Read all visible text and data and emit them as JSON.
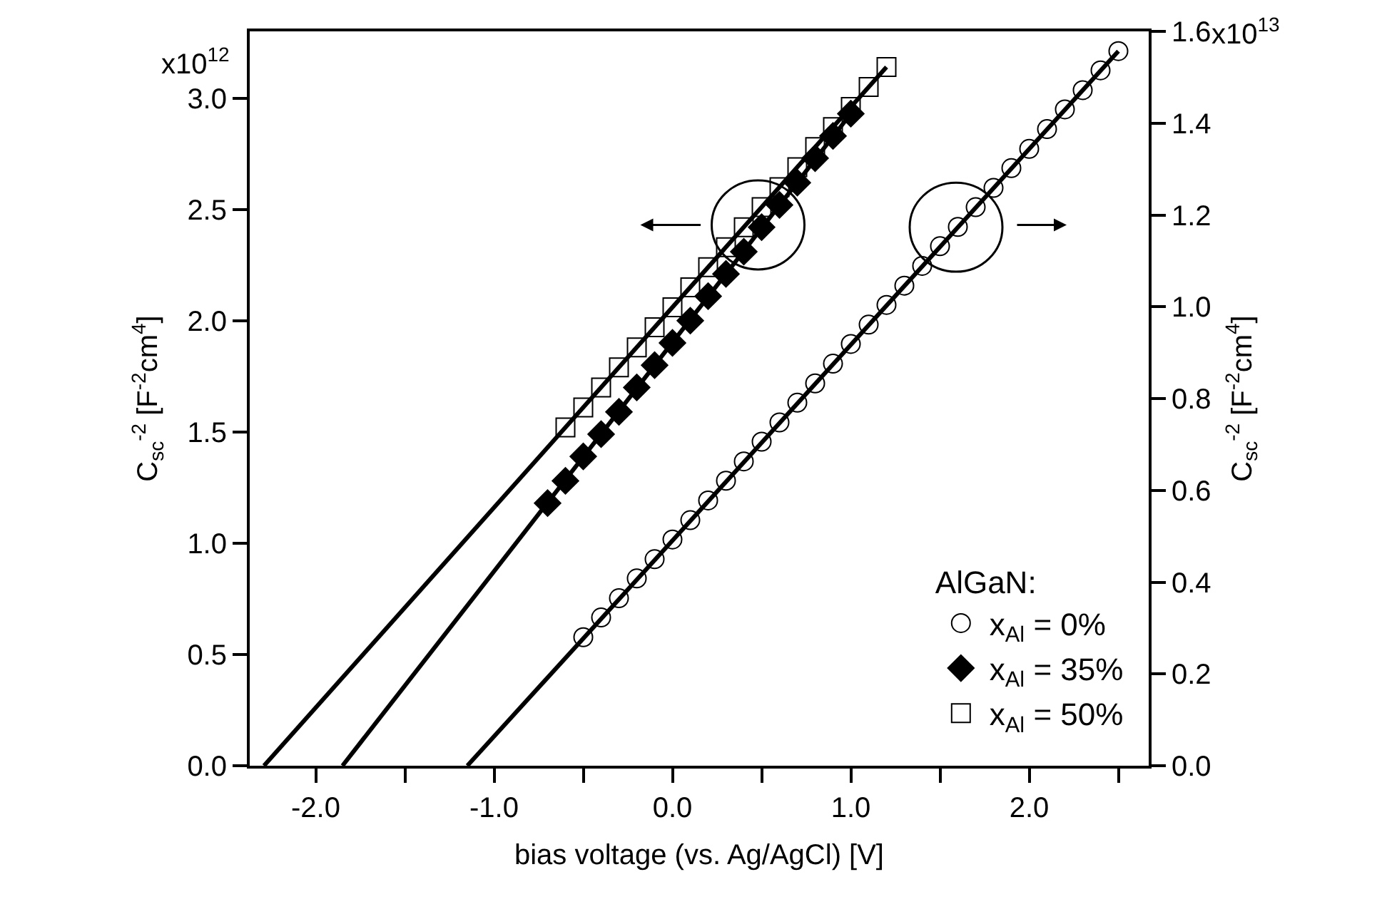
{
  "chart_data": {
    "type": "scatter",
    "xlabel": "bias voltage (vs. Ag/AgCl) [V]",
    "ylabel": "C$_{sc}$$^{-2}$ [F$^{-2}$cm$^{4}$]",
    "y2label": "C$_{sc}$$^{-2}$ [F$^{-2}$cm$^{4}$]",
    "legend_title": "AlGaN:",
    "legend": "bottom right",
    "xlim": [
      -2.37,
      2.67
    ],
    "xticks": [
      {
        "value": -2.0,
        "label": "-2.0"
      },
      {
        "value": -1.5,
        "label": null
      },
      {
        "value": -1.0,
        "label": "-1.0"
      },
      {
        "value": -0.5,
        "label": null
      },
      {
        "value": 0.0,
        "label": "0.0"
      },
      {
        "value": 0.5,
        "label": null
      },
      {
        "value": 1.0,
        "label": "1.0"
      },
      {
        "value": 1.5,
        "label": null
      },
      {
        "value": 2.0,
        "label": "2.0"
      },
      {
        "value": 2.5,
        "label": null
      }
    ],
    "ylim": [
      0,
      3.3
    ],
    "yticks": [
      {
        "value": 0,
        "label": "0.0"
      },
      0.5,
      {
        "value": 1,
        "label": "1.0"
      },
      1.5,
      {
        "value": 2,
        "label": "2.0"
      },
      2.5,
      {
        "value": 3,
        "label": "3.0"
      }
    ],
    "annotations": [
      "x10$^{12}$",
      "x10$^{13}$"
    ],
    "y2lim": [
      0,
      1.6
    ],
    "y2ticks": [
      {
        "value": 0,
        "label": "0.0"
      },
      0.2,
      0.4,
      0.6,
      0.8,
      {
        "value": 1,
        "label": "1.0"
      },
      1.2,
      1.4,
      1.6
    ],
    "series": [
      {
        "name": "x$_{Al}$ = 0%",
        "color": "#000000",
        "marker": "circle",
        "axis": "y2",
        "x": [
          -0.5,
          -0.4,
          -0.3,
          -0.2,
          -0.1,
          0.0,
          0.1,
          0.2,
          0.3,
          0.4,
          0.5,
          0.6,
          0.7,
          0.8,
          0.9,
          1.0,
          1.1,
          1.2,
          1.3,
          1.4,
          1.5,
          1.6,
          1.7,
          1.8,
          1.9,
          2.0,
          2.1,
          2.2,
          2.3,
          2.4,
          2.5
        ],
        "values": [
          0.28,
          0.323,
          0.365,
          0.408,
          0.45,
          0.493,
          0.535,
          0.578,
          0.621,
          0.663,
          0.706,
          0.748,
          0.791,
          0.833,
          0.876,
          0.919,
          0.961,
          1.004,
          1.046,
          1.089,
          1.132,
          1.174,
          1.217,
          1.259,
          1.302,
          1.344,
          1.387,
          1.43,
          1.472,
          1.515,
          1.557
        ]
      },
      {
        "name": "x$_{Al}$ = 35%",
        "color": "#000000",
        "marker": "diamond",
        "x": [
          -0.7,
          -0.6,
          -0.5,
          -0.4,
          -0.3,
          -0.2,
          -0.1,
          0.0,
          0.1,
          0.2,
          0.3,
          0.4,
          0.5,
          0.6,
          0.7,
          0.8,
          0.9,
          1.0
        ],
        "values": [
          1.18,
          1.28,
          1.39,
          1.49,
          1.59,
          1.7,
          1.8,
          1.9,
          2.0,
          2.11,
          2.21,
          2.31,
          2.42,
          2.52,
          2.62,
          2.73,
          2.83,
          2.93
        ]
      },
      {
        "name": "x$_{Al}$ = 50%",
        "color": "#000000",
        "marker": "square",
        "x": [
          -0.6,
          -0.5,
          -0.4,
          -0.3,
          -0.2,
          -0.1,
          0.0,
          0.1,
          0.2,
          0.3,
          0.4,
          0.5,
          0.6,
          0.7,
          0.8,
          0.9,
          1.0,
          1.1,
          1.2
        ],
        "values": [
          1.52,
          1.61,
          1.7,
          1.79,
          1.88,
          1.97,
          2.06,
          2.15,
          2.24,
          2.33,
          2.42,
          2.51,
          2.6,
          2.69,
          2.78,
          2.87,
          2.96,
          3.05,
          3.14
        ]
      },
      {
        "type": "line",
        "color": "#000000",
        "marker": "none",
        "line_style": "solid",
        "axis": "y2",
        "x": [
          -1.15,
          2.5
        ],
        "values": [
          0,
          1.557
        ]
      },
      {
        "type": "line",
        "color": "#000000",
        "marker": "none",
        "line_style": "solid",
        "x": [
          -1.85,
          1.0
        ],
        "values": [
          0,
          2.93
        ]
      },
      {
        "type": "line",
        "color": "#000000",
        "marker": "none",
        "line_style": "solid",
        "x": [
          -2.29,
          1.2
        ],
        "values": [
          0,
          3.14
        ]
      }
    ]
  }
}
